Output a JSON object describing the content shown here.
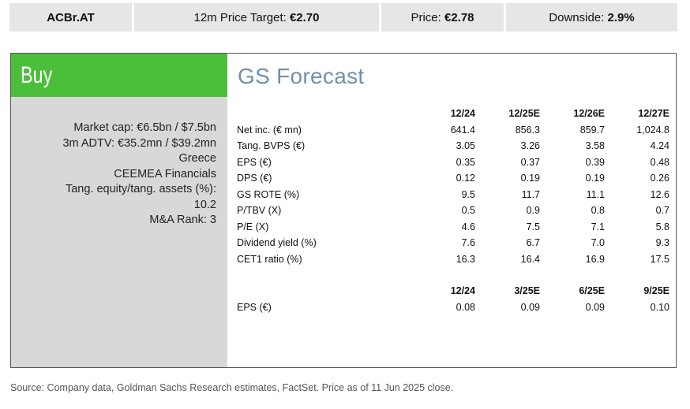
{
  "header": {
    "ticker": "ACBr.AT",
    "target_label": "12m Price Target: ",
    "target_value": "€2.70",
    "price_label": "Price: ",
    "price_value": "€2.78",
    "downside_label": "Downside: ",
    "downside_value": "2.9%"
  },
  "rating": "Buy",
  "colors": {
    "rating_bg": "#4cbf3a",
    "title": "#7090ac",
    "panel_bg": "#d8d8d8",
    "header_bg": "#e6e6e6"
  },
  "info": [
    "Market cap: €6.5bn / $7.5bn",
    "3m ADTV: €35.2mn / $39.2mn",
    "Greece",
    "CEEMEA Financials",
    "Tang. equity/tang. assets (%):",
    "10.2",
    "M&A Rank: 3"
  ],
  "forecast_title": "GS Forecast",
  "annual": {
    "columns": [
      "12/24",
      "12/25E",
      "12/26E",
      "12/27E"
    ],
    "rows": [
      {
        "label": "Net inc. (€ mn)",
        "values": [
          "641.4",
          "856.3",
          "859.7",
          "1,024.8"
        ]
      },
      {
        "label": "Tang. BVPS (€)",
        "values": [
          "3.05",
          "3.26",
          "3.58",
          "4.24"
        ]
      },
      {
        "label": "EPS (€)",
        "values": [
          "0.35",
          "0.37",
          "0.39",
          "0.48"
        ]
      },
      {
        "label": "DPS (€)",
        "values": [
          "0.12",
          "0.19",
          "0.19",
          "0.26"
        ]
      },
      {
        "label": "GS ROTE (%)",
        "values": [
          "9.5",
          "11.7",
          "11.1",
          "12.6"
        ]
      },
      {
        "label": "P/TBV (X)",
        "values": [
          "0.5",
          "0.9",
          "0.8",
          "0.7"
        ]
      },
      {
        "label": "P/E (X)",
        "values": [
          "4.6",
          "7.5",
          "7.1",
          "5.8"
        ]
      },
      {
        "label": "Dividend yield (%)",
        "values": [
          "7.6",
          "6.7",
          "7.0",
          "9.3"
        ]
      },
      {
        "label": "CET1 ratio (%)",
        "values": [
          "16.3",
          "16.4",
          "16.9",
          "17.5"
        ]
      }
    ]
  },
  "quarterly": {
    "columns": [
      "12/24",
      "3/25E",
      "6/25E",
      "9/25E"
    ],
    "rows": [
      {
        "label": "EPS (€)",
        "values": [
          "0.08",
          "0.09",
          "0.09",
          "0.10"
        ]
      }
    ]
  },
  "source": "Source: Company data, Goldman Sachs Research estimates, FactSet. Price as of 11 Jun 2025 close."
}
